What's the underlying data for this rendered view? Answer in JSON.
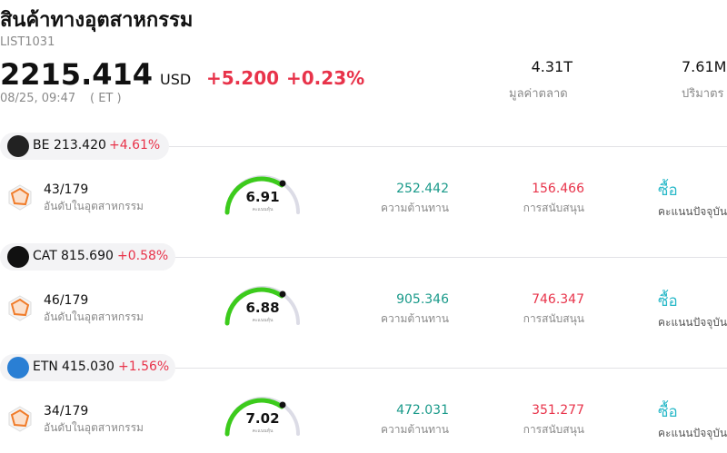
{
  "header": {
    "title": "สินค้าทางอุตสาหกรรม",
    "code": "LIST1031",
    "price": "2215.414",
    "currency": "USD",
    "change": "+5.200",
    "change_pct": "+0.23%",
    "time": "08/25, 09:47",
    "timezone": "( ET )",
    "stats": [
      {
        "value": "4.31T",
        "label": "มูลค่าตลาด"
      },
      {
        "value": "7.61M",
        "label": "ปริมาตร"
      }
    ]
  },
  "items": [
    {
      "ticker": "BE",
      "price": "213.420",
      "change": "+4.61%",
      "rank": "43/179",
      "rank_label": "อันดับในอุตสาหกรรม",
      "score": "6.91",
      "score_label": "คะแนนหุ้น",
      "resistance": "252.442",
      "resistance_label": "ความต้านทาน",
      "support": "156.466",
      "support_label": "การสนับสนุน",
      "signal": "ซื้อ",
      "signal_label": "คะแนนปัจจุบัน"
    },
    {
      "ticker": "CAT",
      "price": "815.690",
      "change": "+0.58%",
      "rank": "46/179",
      "rank_label": "อันดับในอุตสาหกรรม",
      "score": "6.88",
      "score_label": "คะแนนหุ้น",
      "resistance": "905.346",
      "resistance_label": "ความต้านทาน",
      "support": "746.347",
      "support_label": "การสนับสนุน",
      "signal": "ซื้อ",
      "signal_label": "คะแนนปัจจุบัน"
    },
    {
      "ticker": "ETN",
      "price": "415.030",
      "change": "+1.56%",
      "rank": "34/179",
      "rank_label": "อันดับในอุตสาหกรรม",
      "score": "7.02",
      "score_label": "คะแนนหุ้น",
      "resistance": "472.031",
      "resistance_label": "ความต้านทาน",
      "support": "351.277",
      "support_label": "การสนับสนุน",
      "signal": "ซื้อ",
      "signal_label": "คะแนนปัจจุบัน"
    }
  ]
}
